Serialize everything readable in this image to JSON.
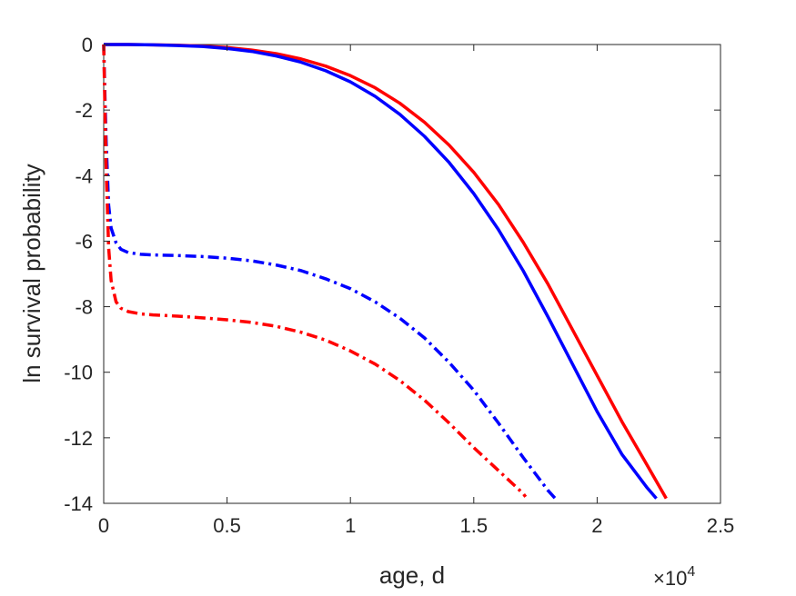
{
  "chart_data": {
    "type": "line",
    "xlabel": "age, d",
    "ylabel": "ln survival probability",
    "x_exponent_label": "×10",
    "x_exponent_power": "4",
    "x_scale": 10000,
    "xlim": [
      0,
      25000
    ],
    "ylim": [
      -14,
      0
    ],
    "x_ticks": [
      0,
      5000,
      10000,
      15000,
      20000,
      25000
    ],
    "x_tick_labels": [
      "0",
      "0.5",
      "1",
      "1.5",
      "2",
      "2.5"
    ],
    "y_ticks": [
      0,
      -2,
      -4,
      -6,
      -8,
      -10,
      -12,
      -14
    ],
    "y_tick_labels": [
      "0",
      "-2",
      "-4",
      "-6",
      "-8",
      "-10",
      "-12",
      "-14"
    ],
    "grid": false,
    "series": [
      {
        "color": "#ff0000",
        "style": "solid",
        "x": [
          0,
          1000,
          2000,
          3000,
          4000,
          5000,
          6000,
          7000,
          8000,
          9000,
          10000,
          11000,
          12000,
          13000,
          14000,
          15000,
          16000,
          17000,
          18000,
          19000,
          20000,
          21000,
          22000,
          22800
        ],
        "y": [
          0,
          0,
          -0.01,
          -0.02,
          -0.05,
          -0.09,
          -0.17,
          -0.28,
          -0.44,
          -0.66,
          -0.95,
          -1.32,
          -1.79,
          -2.37,
          -3.07,
          -3.9,
          -4.88,
          -6.03,
          -7.3,
          -8.7,
          -10.1,
          -11.5,
          -12.8,
          -13.85
        ]
      },
      {
        "color": "#0000ff",
        "style": "solid",
        "x": [
          0,
          1000,
          2000,
          3000,
          4000,
          5000,
          6000,
          7000,
          8000,
          9000,
          10000,
          11000,
          12000,
          13000,
          14000,
          15000,
          16000,
          17000,
          18000,
          19000,
          20000,
          21000,
          22000,
          22400
        ],
        "y": [
          0,
          0,
          -0.01,
          -0.03,
          -0.06,
          -0.12,
          -0.21,
          -0.35,
          -0.54,
          -0.8,
          -1.14,
          -1.58,
          -2.13,
          -2.8,
          -3.6,
          -4.55,
          -5.65,
          -6.9,
          -8.3,
          -9.75,
          -11.2,
          -12.5,
          -13.5,
          -13.85
        ]
      },
      {
        "color": "#0000ff",
        "style": "dashdot",
        "x": [
          0,
          50,
          100,
          200,
          300,
          500,
          700,
          1000,
          1500,
          2000,
          3000,
          4000,
          5000,
          6000,
          7000,
          8000,
          9000,
          10000,
          11000,
          12000,
          13000,
          14000,
          15000,
          16000,
          17000,
          18000,
          18300
        ],
        "y": [
          0,
          -1.6,
          -3.0,
          -4.9,
          -5.6,
          -6.05,
          -6.25,
          -6.35,
          -6.4,
          -6.42,
          -6.44,
          -6.47,
          -6.52,
          -6.6,
          -6.73,
          -6.9,
          -7.15,
          -7.45,
          -7.85,
          -8.35,
          -8.95,
          -9.7,
          -10.55,
          -11.55,
          -12.6,
          -13.6,
          -13.85
        ]
      },
      {
        "color": "#ff0000",
        "style": "dashdot",
        "x": [
          0,
          50,
          100,
          200,
          300,
          500,
          700,
          1000,
          1500,
          2000,
          3000,
          4000,
          5000,
          6000,
          7000,
          8000,
          9000,
          10000,
          11000,
          12000,
          13000,
          14000,
          15000,
          16000,
          17000,
          17100
        ],
        "y": [
          0,
          -2.0,
          -3.8,
          -6.2,
          -7.2,
          -7.85,
          -8.05,
          -8.15,
          -8.22,
          -8.25,
          -8.29,
          -8.34,
          -8.4,
          -8.48,
          -8.6,
          -8.78,
          -9.02,
          -9.35,
          -9.75,
          -10.25,
          -10.85,
          -11.55,
          -12.3,
          -13.0,
          -13.7,
          -13.8
        ]
      }
    ]
  }
}
